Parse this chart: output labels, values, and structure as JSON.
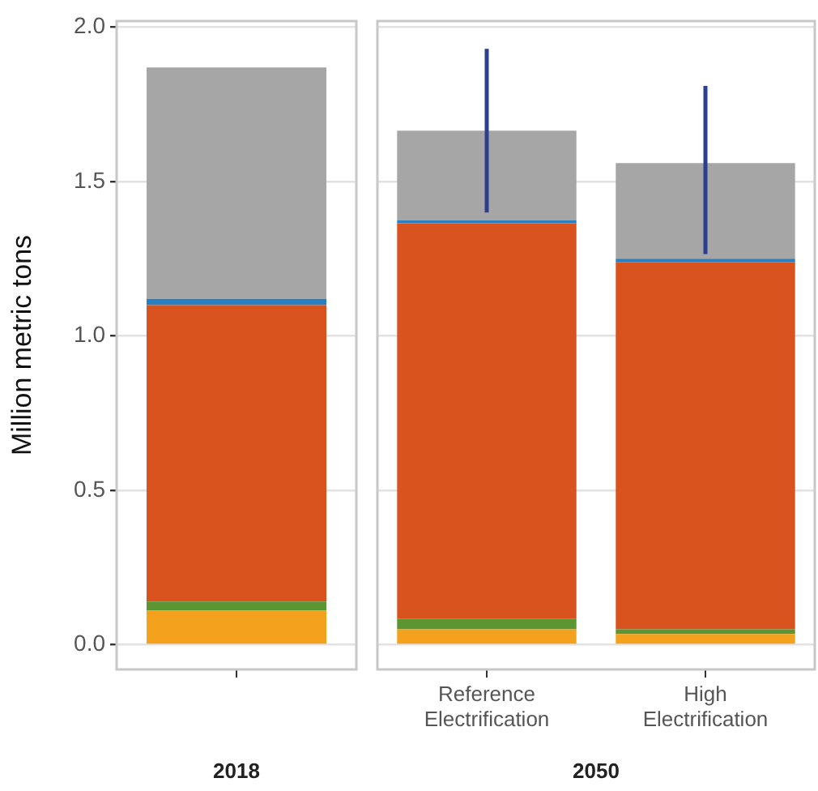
{
  "chart_data": [
    {
      "type": "bar",
      "stacked": true,
      "ylabel": "Million metric tons",
      "xlabel": "2018",
      "categories": [
        null
      ],
      "ylim": [
        -0.08,
        2.02
      ],
      "yticks": [
        {
          "value": 0,
          "label": "0.0"
        },
        {
          "value": 0.5,
          "label": "0.5"
        },
        {
          "value": 1,
          "label": "1.0"
        },
        {
          "value": 1.5,
          "label": "1.5"
        },
        {
          "value": 2,
          "label": "2.0"
        }
      ],
      "grid": "y",
      "legend": false,
      "series": [
        {
          "color": "#f4a11d",
          "values": [
            0.11
          ]
        },
        {
          "color": "#5b9632",
          "values": [
            0.03
          ]
        },
        {
          "color": "#d9531e",
          "values": [
            0.96
          ]
        },
        {
          "color": "#2a7fc0",
          "values": [
            0.02
          ]
        },
        {
          "color": "#a6a6a6",
          "values": [
            0.75
          ]
        }
      ]
    },
    {
      "type": "bar",
      "stacked": true,
      "xlabel": "2050",
      "categories": [
        "Reference Electrification",
        "High Electrification"
      ],
      "ylim": [
        -0.08,
        2.02
      ],
      "yticks": [
        0,
        0.5,
        1,
        1.5,
        2
      ],
      "grid": "y",
      "legend": false,
      "tick_labels": "x",
      "series": [
        {
          "color": "#f4a11d",
          "values": [
            0.05,
            0.035
          ]
        },
        {
          "color": "#5b9632",
          "values": [
            0.035,
            0.015
          ]
        },
        {
          "color": "#d9531e",
          "values": [
            1.28,
            1.19
          ]
        },
        {
          "color": "#2a7fc0",
          "values": [
            0.01,
            0.01
          ]
        },
        {
          "color": "#a6a6a6",
          "values": [
            0.29,
            0.31
          ],
          "errors": [
            [
              1.4,
              1.93
            ],
            [
              1.265,
              1.81
            ]
          ]
        }
      ]
    }
  ]
}
